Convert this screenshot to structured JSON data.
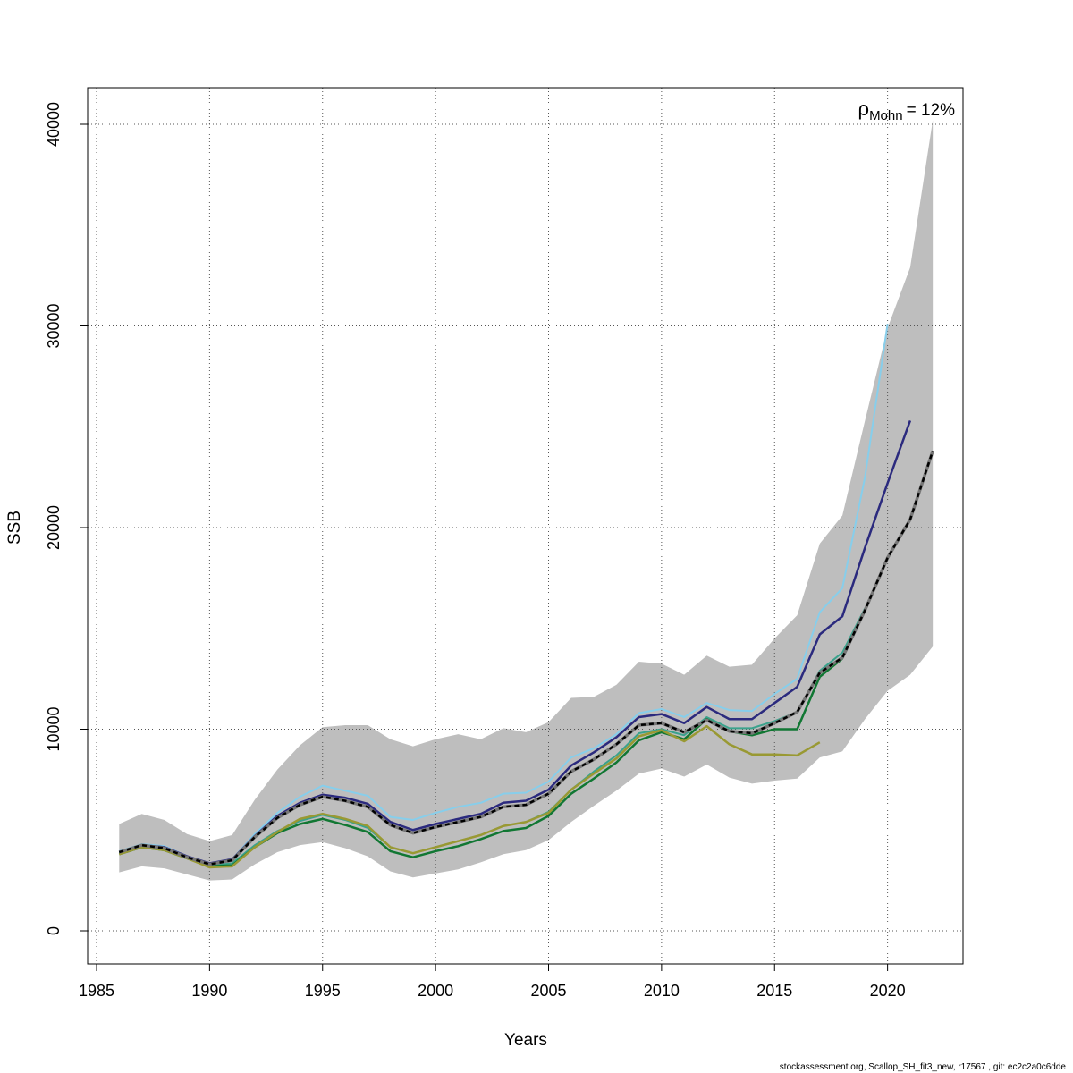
{
  "chart_data": {
    "type": "line",
    "xlabel": "Years",
    "ylabel": "SSB",
    "xlim": [
      1985,
      2023
    ],
    "ylim": [
      0,
      41000
    ],
    "grid": true,
    "x_ticks": [
      "1985",
      "1990",
      "1995",
      "2000",
      "2005",
      "2010",
      "2015",
      "2020"
    ],
    "y_ticks": [
      "0",
      "10000",
      "20000",
      "30000",
      "40000"
    ],
    "annotation": {
      "symbol": "ρ",
      "subscript": "Mohn",
      "value": "= 12%"
    },
    "footer": "stockassessment.org, Scallop_SH_fit3_new, r17567 , git: ec2c2a0c6dde",
    "band": {
      "x": [
        1986,
        1987,
        1988,
        1989,
        1990,
        1991,
        1992,
        1993,
        1994,
        1995,
        1996,
        1997,
        1998,
        1999,
        2000,
        2001,
        2002,
        2003,
        2004,
        2005,
        2006,
        2007,
        2008,
        2009,
        2010,
        2011,
        2012,
        2013,
        2014,
        2015,
        2016,
        2017,
        2018,
        2019,
        2020,
        2021,
        2022
      ],
      "lower": [
        2900,
        3200,
        3100,
        2800,
        2500,
        2550,
        3300,
        3900,
        4250,
        4400,
        4100,
        3700,
        2950,
        2650,
        2850,
        3050,
        3400,
        3800,
        4000,
        4500,
        5400,
        6200,
        6950,
        7800,
        8050,
        7650,
        8250,
        7600,
        7300,
        7450,
        7550,
        8600,
        8900,
        10500,
        11900,
        12700,
        14100
      ],
      "upper": [
        5300,
        5800,
        5500,
        4800,
        4450,
        4750,
        6500,
        8000,
        9200,
        10100,
        10200,
        10200,
        9500,
        9150,
        9500,
        9750,
        9500,
        10050,
        9850,
        10350,
        11550,
        11600,
        12200,
        13350,
        13250,
        12700,
        13650,
        13100,
        13200,
        14500,
        15650,
        19200,
        20600,
        25300,
        29900,
        32900,
        40200
      ],
      "color": "#bebebe"
    },
    "series": [
      {
        "x": [
          1986,
          1987,
          1988,
          1989,
          1990,
          1991,
          1992,
          1993,
          1994,
          1995,
          1996,
          1997,
          1998,
          1999,
          2000,
          2001,
          2002,
          2003,
          2004,
          2005,
          2006,
          2007,
          2008,
          2009,
          2010,
          2011,
          2012,
          2013,
          2014,
          2015,
          2016,
          2017,
          2018,
          2019,
          2020
        ],
        "values": [
          3950,
          4300,
          4200,
          3700,
          3350,
          3550,
          4800,
          5850,
          6650,
          7200,
          6950,
          6700,
          5650,
          5500,
          5850,
          6150,
          6350,
          6800,
          6850,
          7400,
          8600,
          9050,
          9750,
          10800,
          11000,
          10600,
          11300,
          10950,
          10900,
          11750,
          12500,
          15800,
          17000,
          22500,
          30100
        ],
        "color": "#87ceeb",
        "width": 2,
        "dash": false
      },
      {
        "x": [
          1986,
          1987,
          1988,
          1989,
          1990,
          1991,
          1992,
          1993,
          1994,
          1995,
          1996,
          1997,
          1998,
          1999,
          2000,
          2001,
          2002,
          2003,
          2004,
          2005,
          2006,
          2007,
          2008,
          2009,
          2010,
          2011,
          2012,
          2013,
          2014,
          2015,
          2016,
          2017,
          2018,
          2019,
          2020,
          2021
        ],
        "values": [
          3900,
          4250,
          4150,
          3700,
          3350,
          3550,
          4700,
          5700,
          6350,
          6750,
          6600,
          6300,
          5400,
          5000,
          5300,
          5550,
          5800,
          6350,
          6450,
          7000,
          8200,
          8850,
          9600,
          10600,
          10750,
          10300,
          11100,
          10500,
          10500,
          11300,
          12100,
          14700,
          15600,
          19000,
          22200,
          25300
        ],
        "color": "#2b2a7e",
        "width": 2.5,
        "dash": false
      },
      {
        "x": [
          1986,
          1987,
          1988,
          1989,
          1990,
          1991,
          1992,
          1993,
          1994,
          1995,
          1996,
          1997,
          1998,
          1999,
          2000,
          2001,
          2002,
          2003,
          2004,
          2005,
          2006,
          2007,
          2008,
          2009,
          2010,
          2011,
          2012,
          2013,
          2014,
          2015,
          2016,
          2017,
          2018,
          2019
        ],
        "values": [
          3850,
          4200,
          4100,
          3650,
          3250,
          3350,
          4250,
          4950,
          5450,
          5750,
          5500,
          5100,
          4150,
          3850,
          4150,
          4450,
          4750,
          5200,
          5400,
          5900,
          7000,
          7900,
          8700,
          9800,
          10000,
          9700,
          10600,
          10050,
          10050,
          10400,
          10850,
          12900,
          13800,
          16000
        ],
        "color": "#3aa28c",
        "width": 2,
        "dash": false
      },
      {
        "x": [
          1986,
          1987,
          1988,
          1989,
          1990,
          1991,
          1992,
          1993,
          1994,
          1995,
          1996,
          1997,
          1998,
          1999,
          2000,
          2001,
          2002,
          2003,
          2004,
          2005,
          2006,
          2007,
          2008,
          2009,
          2010,
          2011,
          2012,
          2013,
          2014,
          2015,
          2016,
          2017,
          2018
        ],
        "values": [
          3800,
          4150,
          4000,
          3600,
          3200,
          3250,
          4150,
          4850,
          5300,
          5550,
          5250,
          4900,
          3950,
          3650,
          3950,
          4200,
          4550,
          4950,
          5100,
          5700,
          6800,
          7550,
          8350,
          9450,
          9850,
          9500,
          10500,
          9900,
          9700,
          10000,
          10000,
          12600,
          13500
        ],
        "color": "#117733",
        "width": 2.5,
        "dash": false
      },
      {
        "x": [
          1986,
          1987,
          1988,
          1989,
          1990,
          1991,
          1992,
          1993,
          1994,
          1995,
          1996,
          1997,
          1998,
          1999,
          2000,
          2001,
          2002,
          2003,
          2004,
          2005,
          2006,
          2007,
          2008,
          2009,
          2010,
          2011,
          2012,
          2013,
          2014,
          2015,
          2016,
          2017
        ],
        "values": [
          3800,
          4150,
          4000,
          3600,
          3150,
          3200,
          4150,
          4900,
          5550,
          5800,
          5550,
          5200,
          4150,
          3850,
          4150,
          4450,
          4750,
          5200,
          5400,
          5850,
          7000,
          7800,
          8550,
          9650,
          9950,
          9400,
          10150,
          9250,
          8750,
          8750,
          8700,
          9350
        ],
        "color": "#999933",
        "width": 2.5,
        "dash": false
      },
      {
        "x": [
          1986,
          1987,
          1988,
          1989,
          1990,
          1991,
          1992,
          1993,
          1994,
          1995,
          1996,
          1997,
          1998,
          1999,
          2000,
          2001,
          2002,
          2003,
          2004,
          2005,
          2006,
          2007,
          2008,
          2009,
          2010,
          2011,
          2012,
          2013,
          2014,
          2015,
          2016,
          2017,
          2018,
          2019,
          2020,
          2021,
          2022
        ],
        "values": [
          3900,
          4250,
          4100,
          3650,
          3300,
          3500,
          4650,
          5600,
          6250,
          6650,
          6450,
          6150,
          5250,
          4850,
          5150,
          5400,
          5650,
          6150,
          6250,
          6800,
          7900,
          8500,
          9250,
          10200,
          10300,
          9850,
          10450,
          9900,
          9800,
          10300,
          10850,
          12800,
          13550,
          15900,
          18500,
          20400,
          23800
        ],
        "color": "#000000",
        "width": 2.5,
        "dash": true
      }
    ]
  }
}
